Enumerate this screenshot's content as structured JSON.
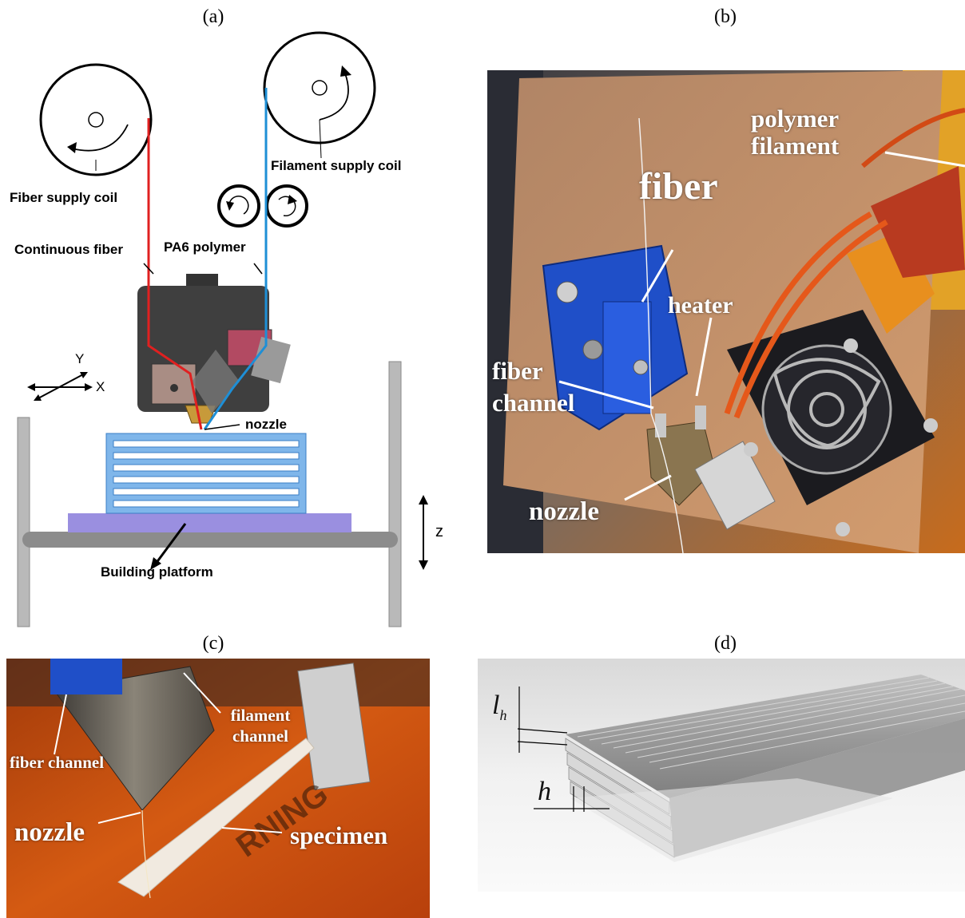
{
  "panels": {
    "a": {
      "label": "(a)",
      "fiber_supply_coil": "Fiber supply coil",
      "filament_supply_coil": "Filament supply coil",
      "continuous_fiber": "Continuous fiber",
      "pa6_polymer": "PA6 polymer",
      "nozzle": "nozzle",
      "building_platform": "Building platform",
      "axis_y": "Y",
      "axis_x": "X",
      "axis_z": "z"
    },
    "b": {
      "label": "(b)",
      "polymer_filament": "polymer filament",
      "fiber": "fiber",
      "heater": "heater",
      "fiber_channel": "fiber channel",
      "nozzle": "nozzle"
    },
    "c": {
      "label": "(c)",
      "fiber_channel": "fiber channel",
      "filament_channel": "filament channel",
      "nozzle": "nozzle",
      "specimen": "specimen"
    },
    "d": {
      "label": "(d)",
      "lh_main": "l",
      "lh_sub": "h",
      "h": "h"
    }
  },
  "colors": {
    "fiber_line": "#e02020",
    "filament_line": "#1e8fd6",
    "layers": "#7fb6ea",
    "platform": "#9a8fe0",
    "photo_bg_b": "#c98a4e",
    "photo_bg_c": "#c0490f"
  }
}
